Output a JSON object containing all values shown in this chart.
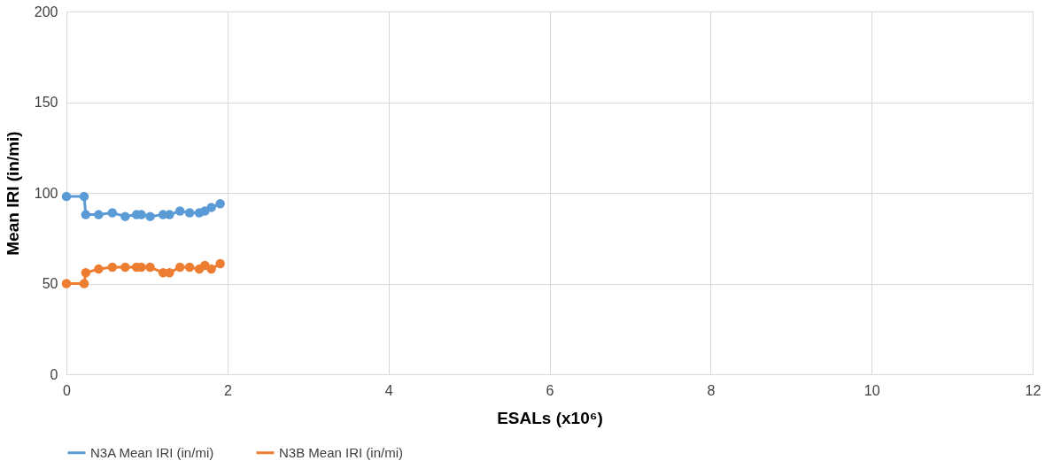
{
  "chart_data": {
    "type": "line",
    "xlabel": "ESALs (x10⁶)",
    "ylabel": "Mean IRI (in/mi)",
    "x": [
      0,
      0.22,
      0.24,
      0.4,
      0.57,
      0.73,
      0.87,
      0.93,
      1.04,
      1.2,
      1.28,
      1.41,
      1.53,
      1.65,
      1.72,
      1.8,
      1.91
    ],
    "series": [
      {
        "name": "N3A Mean IRI (in/mi)",
        "color": "#5b9bd5",
        "values": [
          98,
          98,
          88,
          88,
          89,
          87,
          88,
          88,
          87,
          88,
          88,
          90,
          89,
          89,
          90,
          92,
          94
        ]
      },
      {
        "name": "N3B Mean IRI (in/mi)",
        "color": "#ed7d31",
        "values": [
          50,
          50,
          56,
          58,
          59,
          59,
          59,
          59,
          59,
          56,
          56,
          59,
          59,
          58,
          60,
          58,
          61
        ]
      }
    ],
    "xlim": [
      0,
      12
    ],
    "xticks": [
      0,
      2,
      4,
      6,
      8,
      10,
      12
    ],
    "ylim": [
      0,
      200
    ],
    "yticks": [
      0,
      50,
      100,
      150,
      200
    ],
    "grid": true,
    "legend": "bottom",
    "marker": "circle",
    "line_style": "solid"
  }
}
